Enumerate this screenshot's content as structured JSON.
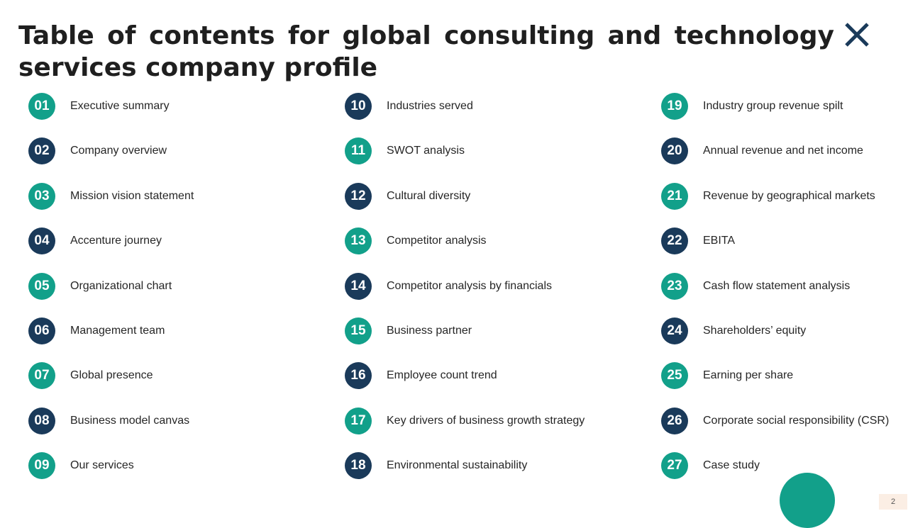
{
  "title": "Table of contents for global consulting and technology services company profile",
  "close_icon": "close-x-icon",
  "colors": {
    "teal": "#12a08a",
    "navy": "#1a3a5a",
    "page_badge_bg": "#fbeee4"
  },
  "page_number": "2",
  "toc": {
    "col1": [
      {
        "num": "01",
        "label": "Executive summary",
        "color": "teal"
      },
      {
        "num": "02",
        "label": "Company overview",
        "color": "navy"
      },
      {
        "num": "03",
        "label": "Mission vision statement",
        "color": "teal"
      },
      {
        "num": "04",
        "label": "Accenture journey",
        "color": "navy"
      },
      {
        "num": "05",
        "label": "Organizational chart",
        "color": "teal"
      },
      {
        "num": "06",
        "label": "Management team",
        "color": "navy"
      },
      {
        "num": "07",
        "label": "Global presence",
        "color": "teal"
      },
      {
        "num": "08",
        "label": "Business model canvas",
        "color": "navy"
      },
      {
        "num": "09",
        "label": "Our services",
        "color": "teal"
      }
    ],
    "col2": [
      {
        "num": "10",
        "label": "Industries served",
        "color": "navy"
      },
      {
        "num": "11",
        "label": "SWOT analysis",
        "color": "teal"
      },
      {
        "num": "12",
        "label": "Cultural diversity",
        "color": "navy"
      },
      {
        "num": "13",
        "label": "Competitor analysis",
        "color": "teal"
      },
      {
        "num": "14",
        "label": "Competitor analysis by financials",
        "color": "navy"
      },
      {
        "num": "15",
        "label": "Business partner",
        "color": "teal"
      },
      {
        "num": "16",
        "label": "Employee count trend",
        "color": "navy"
      },
      {
        "num": "17",
        "label": "Key drivers of business growth strategy",
        "color": "teal"
      },
      {
        "num": "18",
        "label": "Environmental sustainability",
        "color": "navy"
      }
    ],
    "col3": [
      {
        "num": "19",
        "label": "Industry group revenue spilt",
        "color": "teal"
      },
      {
        "num": "20",
        "label": "Annual revenue and net income",
        "color": "navy"
      },
      {
        "num": "21",
        "label": "Revenue by geographical markets",
        "color": "teal"
      },
      {
        "num": "22",
        "label": "EBITA",
        "color": "navy"
      },
      {
        "num": "23",
        "label": "Cash flow statement analysis",
        "color": "teal"
      },
      {
        "num": "24",
        "label": "Shareholders’ equity",
        "color": "navy"
      },
      {
        "num": "25",
        "label": "Earning per share",
        "color": "teal"
      },
      {
        "num": "26",
        "label": "Corporate social responsibility (CSR)",
        "color": "navy"
      },
      {
        "num": "27",
        "label": "Case study",
        "color": "teal"
      }
    ]
  }
}
